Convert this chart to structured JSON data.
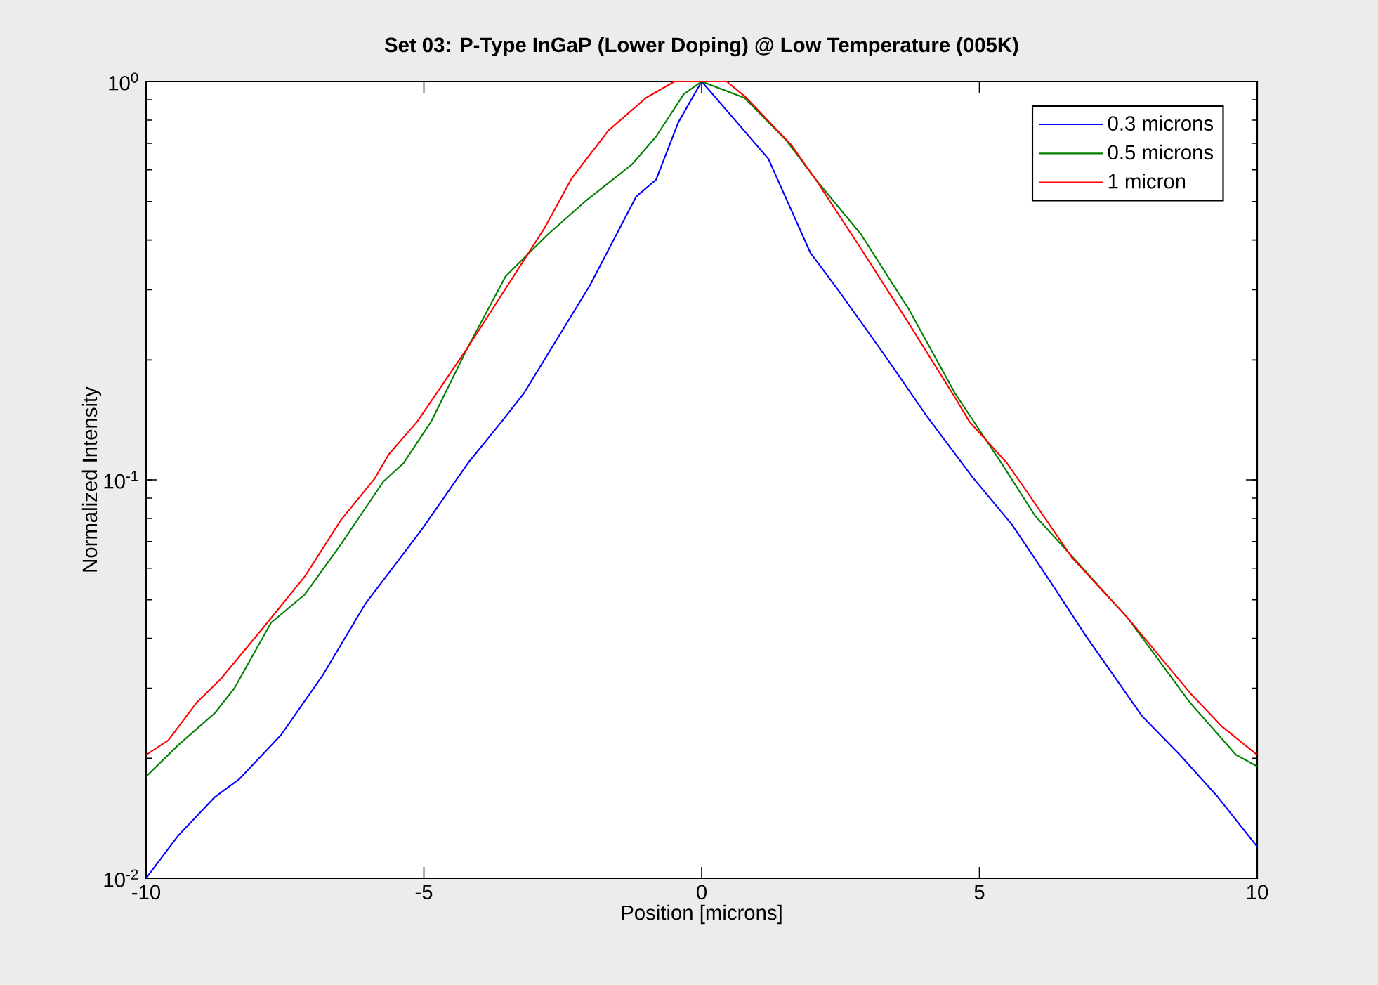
{
  "chart_data": {
    "type": "line",
    "title": "Set 03: P-Type InGaP (Lower Doping) @ Low Temperature (005K)",
    "xlabel": "Position [microns]",
    "ylabel": "Normalized Intensity",
    "log": "y",
    "xlim": [
      -10,
      10
    ],
    "ylim": [
      0.01,
      1
    ],
    "xticks": [
      -10,
      -5,
      0,
      5,
      10
    ],
    "yticks": [
      {
        "value": 0.01,
        "label": "10$^{-2}$"
      },
      {
        "value": 0.1,
        "label": "10$^{-1}$"
      },
      {
        "value": 1,
        "label": "10$^{0}$"
      }
    ],
    "grid": false,
    "legend": "top right",
    "marker": "none",
    "line_style": "solid",
    "series": [
      {
        "name": "0.3 microns",
        "color": "#0000ff",
        "x": [
          -10,
          -9.42,
          -8.76,
          -8.33,
          -7.57,
          -6.81,
          -6.06,
          -5.04,
          -4.21,
          -3.6,
          -3.2,
          -2.01,
          -1.18,
          -0.82,
          -0.42,
          0,
          1.2,
          1.96,
          2.47,
          3.3,
          4.06,
          4.89,
          5.58,
          6.26,
          6.92,
          7.93,
          8.61,
          9.29,
          10
        ],
        "values": [
          0.01,
          0.0128,
          0.016,
          0.0177,
          0.0229,
          0.0325,
          0.0487,
          0.075,
          0.11,
          0.14,
          0.165,
          0.308,
          0.514,
          0.567,
          0.79,
          1,
          0.64,
          0.371,
          0.298,
          0.205,
          0.144,
          0.101,
          0.0774,
          0.056,
          0.0405,
          0.0255,
          0.0204,
          0.016,
          0.012
        ]
      },
      {
        "name": "0.5 microns",
        "color": "#008000",
        "x": [
          -10,
          -9.42,
          -8.76,
          -8.41,
          -7.75,
          -7.14,
          -6.49,
          -5.73,
          -5.37,
          -4.87,
          -4.21,
          -3.53,
          -2.77,
          -2.09,
          -1.25,
          -0.82,
          -0.32,
          0,
          0.77,
          1.53,
          2.04,
          2.87,
          3.73,
          4.56,
          5.4,
          6.0,
          6.76,
          7.67,
          8.79,
          9.62,
          10
        ],
        "values": [
          0.018,
          0.0216,
          0.026,
          0.03,
          0.0438,
          0.0516,
          0.069,
          0.099,
          0.11,
          0.14,
          0.215,
          0.324,
          0.413,
          0.501,
          0.62,
          0.728,
          0.93,
          1,
          0.91,
          0.71,
          0.571,
          0.413,
          0.268,
          0.165,
          0.11,
          0.0813,
          0.0622,
          0.045,
          0.0276,
          0.0204,
          0.0191
        ]
      },
      {
        "name": "1 micron",
        "color": "#ff0000",
        "x": [
          -10,
          -9.6,
          -9.09,
          -8.66,
          -7.9,
          -7.14,
          -6.49,
          -5.88,
          -5.63,
          -5.12,
          -4.21,
          -2.84,
          -2.34,
          -1.68,
          -1.0,
          -0.49,
          0,
          0.45,
          0.77,
          1.61,
          2.04,
          2.87,
          3.73,
          4.56,
          4.82,
          5.5,
          5.91,
          6.67,
          7.67,
          8.79,
          9.37,
          10
        ],
        "values": [
          0.0204,
          0.0222,
          0.0276,
          0.0316,
          0.0424,
          0.0573,
          0.0794,
          0.101,
          0.116,
          0.14,
          0.215,
          0.426,
          0.571,
          0.753,
          0.91,
          1,
          1,
          1,
          0.92,
          0.694,
          0.571,
          0.38,
          0.247,
          0.161,
          0.14,
          0.11,
          0.091,
          0.0637,
          0.045,
          0.0292,
          0.024,
          0.0204
        ]
      }
    ]
  }
}
